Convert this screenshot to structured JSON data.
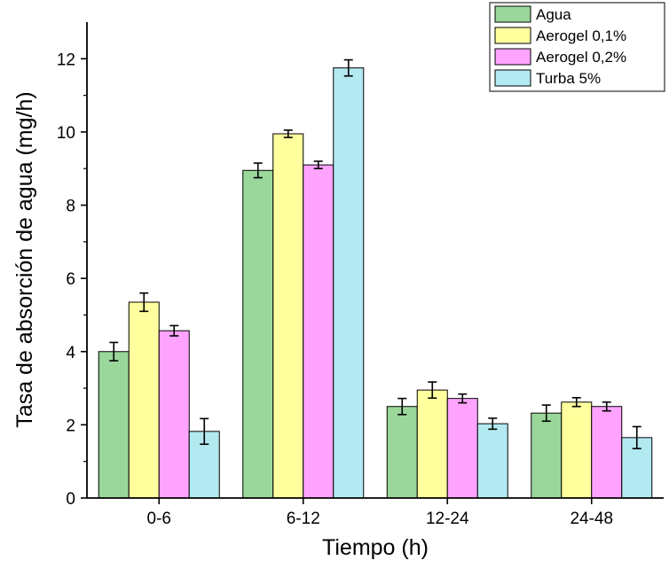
{
  "chart_data": {
    "type": "bar",
    "title": "",
    "xlabel": "Tiempo (h)",
    "ylabel": "Tasa de absorción de agua (mg/h)",
    "categories": [
      "0-6",
      "6-12",
      "12-24",
      "24-48"
    ],
    "ylim": [
      0,
      13
    ],
    "yticks": [
      0,
      2,
      4,
      6,
      8,
      10,
      12
    ],
    "grid": false,
    "legend_position": "top-right",
    "error_bars": true,
    "series": [
      {
        "name": "Agua",
        "color": "#9ad79a",
        "values": [
          4.0,
          8.95,
          2.5,
          2.32
        ],
        "errors": [
          0.25,
          0.2,
          0.22,
          0.22
        ]
      },
      {
        "name": "Aerogel 0,1%",
        "color": "#ffff9e",
        "values": [
          5.35,
          9.95,
          2.95,
          2.62
        ],
        "errors": [
          0.25,
          0.1,
          0.22,
          0.12
        ]
      },
      {
        "name": "Aerogel 0,2%",
        "color": "#ffa3ff",
        "values": [
          4.57,
          9.1,
          2.72,
          2.5
        ],
        "errors": [
          0.14,
          0.1,
          0.12,
          0.12
        ]
      },
      {
        "name": "Turba 5%",
        "color": "#b3e9f0",
        "values": [
          1.82,
          11.75,
          2.03,
          1.65
        ],
        "errors": [
          0.35,
          0.22,
          0.15,
          0.3
        ]
      }
    ]
  }
}
